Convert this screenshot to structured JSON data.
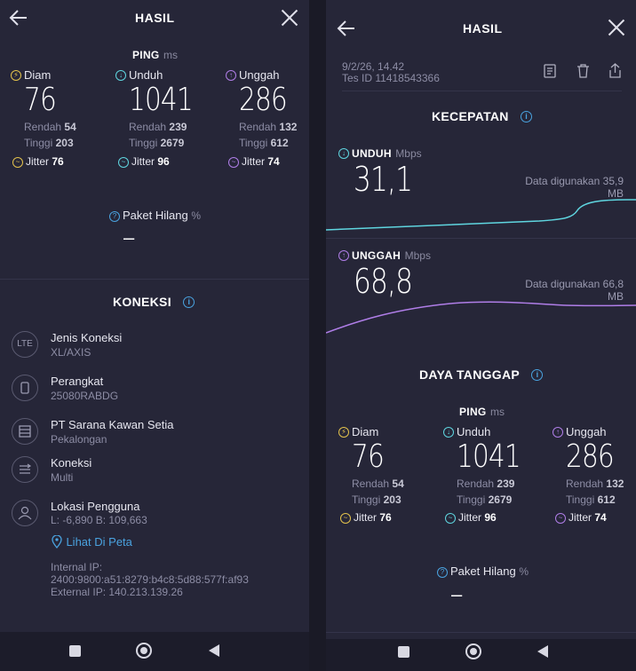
{
  "header": {
    "title": "HASIL"
  },
  "ping": {
    "title": "PING",
    "unit": "ms"
  },
  "metrics": [
    {
      "label": "Diam",
      "value": "76",
      "low_label": "Rendah",
      "low": "54",
      "high_label": "Tinggi",
      "high": "203",
      "jitter_label": "Jitter",
      "jitter": "76"
    },
    {
      "label": "Unduh",
      "value": "1041",
      "low_label": "Rendah",
      "low": "239",
      "high_label": "Tinggi",
      "high": "2679",
      "jitter_label": "Jitter",
      "jitter": "96"
    },
    {
      "label": "Unggah",
      "value": "286",
      "low_label": "Rendah",
      "low": "132",
      "high_label": "Tinggi",
      "high": "612",
      "jitter_label": "Jitter",
      "jitter": "74"
    }
  ],
  "packet_loss": {
    "label": "Paket Hilang",
    "unit": "%",
    "value": "–"
  },
  "connection": {
    "title": "KONEKSI",
    "items": [
      {
        "icon": "LTE",
        "title": "Jenis Koneksi",
        "value": "XL/AXIS"
      },
      {
        "icon": "phone",
        "title": "Perangkat",
        "value": "25080RABDG"
      },
      {
        "icon": "server",
        "title": "PT Sarana Kawan Setia",
        "value": "Pekalongan"
      },
      {
        "icon": "arrows",
        "title": "Koneksi",
        "value": "Multi"
      },
      {
        "icon": "user",
        "title": "Lokasi Pengguna",
        "value": "L: -6,890 B: 109,663"
      }
    ],
    "map_link": "Lihat Di Peta",
    "internal_ip_label": "Internal IP:",
    "internal_ip": "2400:9800:a51:8279:b4c8:5d88:577f:af93",
    "external_ip_label": "External IP:",
    "external_ip": "140.213.139.26"
  },
  "result": {
    "date": "9/2/26, 14.42",
    "test_id_label": "Tes ID",
    "test_id": "11418543366"
  },
  "speed": {
    "title": "KECEPATAN",
    "download": {
      "label": "UNDUH",
      "unit": "Mbps",
      "value": "31,1",
      "data_used_label": "Data digunakan",
      "data_used": "35,9",
      "data_unit": "MB"
    },
    "upload": {
      "label": "UNGGAH",
      "unit": "Mbps",
      "value": "68,8",
      "data_used_label": "Data digunakan",
      "data_used": "66,8",
      "data_unit": "MB"
    }
  },
  "responsiveness": {
    "title": "DAYA TANGGAP"
  },
  "colors": {
    "panel": "#262638",
    "cyan": "#5fd6e0",
    "purple": "#b07ee8",
    "yellow": "#e3c24c",
    "link": "#4aa3e0"
  }
}
